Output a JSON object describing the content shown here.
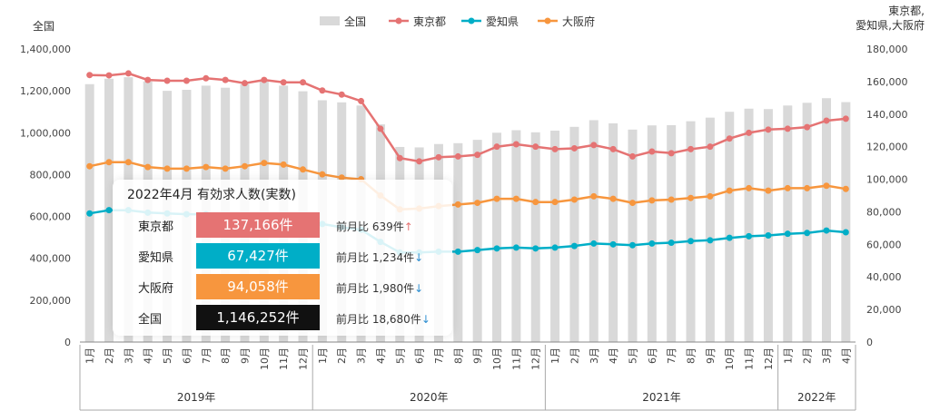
{
  "chart_data": {
    "type": "bar+line",
    "left_axis_title": "全国",
    "right_axis_title_line1": "東京都,",
    "right_axis_title_line2": "愛知県,大阪府",
    "left_ticks": [
      "0",
      "200,000",
      "400,000",
      "600,000",
      "800,000",
      "1,000,000",
      "1,200,000",
      "1,400,000"
    ],
    "right_ticks": [
      "0",
      "20,000",
      "40,000",
      "60,000",
      "80,000",
      "100,000",
      "120,000",
      "140,000",
      "160,000",
      "180,000"
    ],
    "left_ylim": [
      0,
      1400000
    ],
    "right_ylim": [
      0,
      180000
    ],
    "months": [
      "1月",
      "2月",
      "3月",
      "4月",
      "5月",
      "6月",
      "7月",
      "8月",
      "9月",
      "10月",
      "11月",
      "12月",
      "1月",
      "2月",
      "3月",
      "4月",
      "5月",
      "6月",
      "7月",
      "8月",
      "9月",
      "10月",
      "11月",
      "12月",
      "1月",
      "2月",
      "3月",
      "4月",
      "5月",
      "6月",
      "7月",
      "8月",
      "9月",
      "10月",
      "11月",
      "12月",
      "1月",
      "2月",
      "3月",
      "4月"
    ],
    "years": [
      {
        "label": "2019年",
        "count": 12
      },
      {
        "label": "2020年",
        "count": 12
      },
      {
        "label": "2021年",
        "count": 12
      },
      {
        "label": "2022年",
        "count": 4
      }
    ],
    "legend": [
      "全国",
      "東京都",
      "愛知県",
      "大阪府"
    ],
    "series": [
      {
        "name": "全国",
        "axis": "left",
        "kind": "bar",
        "color": "#d9d9d9",
        "values": [
          1232000,
          1258000,
          1265000,
          1245000,
          1200000,
          1205000,
          1225000,
          1215000,
          1232000,
          1250000,
          1225000,
          1198000,
          1155000,
          1145000,
          1130000,
          1040000,
          932000,
          930000,
          946000,
          950000,
          966000,
          1000000,
          1012000,
          1002000,
          1010000,
          1028000,
          1060000,
          1045000,
          1015000,
          1035000,
          1036000,
          1055000,
          1072000,
          1100000,
          1115000,
          1113000,
          1130000,
          1143000,
          1165000,
          1146252
        ]
      },
      {
        "name": "東京都",
        "axis": "right",
        "kind": "line",
        "color": "#e57373",
        "values": [
          164000,
          163800,
          165000,
          161000,
          160500,
          160500,
          162000,
          161000,
          159000,
          161000,
          159500,
          159500,
          154500,
          152000,
          148000,
          131000,
          113000,
          111000,
          113500,
          114000,
          115000,
          120000,
          121500,
          120000,
          118500,
          119000,
          121000,
          118500,
          114000,
          117000,
          116000,
          118500,
          120000,
          125000,
          128500,
          130500,
          131000,
          132000,
          136000,
          137166
        ]
      },
      {
        "name": "愛知県",
        "axis": "right",
        "kind": "line",
        "color": "#00aec7",
        "values": [
          79000,
          81000,
          81000,
          79500,
          79000,
          78500,
          78500,
          77500,
          76500,
          75500,
          75500,
          74500,
          72500,
          70500,
          69000,
          61500,
          55000,
          55000,
          55500,
          55500,
          56500,
          57500,
          58000,
          57500,
          58000,
          59000,
          60500,
          60000,
          59500,
          60500,
          61000,
          62000,
          62500,
          64000,
          65000,
          65500,
          66500,
          67000,
          68500,
          67427
        ]
      },
      {
        "name": "大阪府",
        "axis": "right",
        "kind": "line",
        "color": "#f7963e",
        "values": [
          108000,
          110500,
          110500,
          107500,
          106500,
          106500,
          107500,
          106500,
          108000,
          110000,
          109000,
          106000,
          103000,
          101000,
          100000,
          90000,
          81500,
          82000,
          83500,
          84500,
          85500,
          88000,
          88000,
          86000,
          86000,
          87500,
          89500,
          88000,
          85500,
          87000,
          87500,
          88500,
          89500,
          93000,
          94500,
          93000,
          94500,
          94500,
          96000,
          94058
        ]
      }
    ]
  },
  "info": {
    "title": "2022年4月 有効求人数(実数)",
    "rows": [
      {
        "name": "東京都",
        "value": "137,166件",
        "change": "前月比 639件",
        "direction": "up",
        "box_color": "#e57373",
        "arrow_color": "#e57373"
      },
      {
        "name": "愛知県",
        "value": "67,427件",
        "change": "前月比 1,234件",
        "direction": "down",
        "box_color": "#00aec7",
        "arrow_color": "#2f8fd1"
      },
      {
        "name": "大阪府",
        "value": "94,058件",
        "change": "前月比 1,980件",
        "direction": "down",
        "box_color": "#f7963e",
        "arrow_color": "#2f8fd1"
      },
      {
        "name": "全国",
        "value": "1,146,252件",
        "change": "前月比 18,680件",
        "direction": "down",
        "box_color": "#111111",
        "arrow_color": "#2f8fd1"
      }
    ]
  }
}
